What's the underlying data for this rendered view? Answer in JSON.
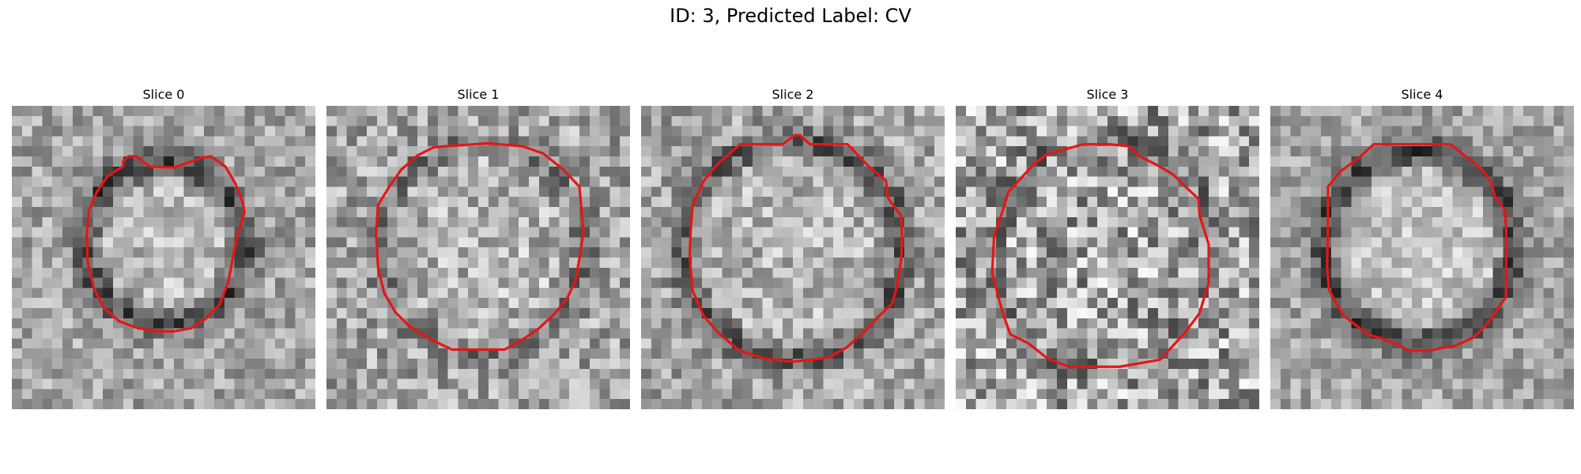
{
  "title": "ID: 3, Predicted Label: CV",
  "slices": [
    {
      "label": "Slice 0",
      "contour_color": "#e51616"
    },
    {
      "label": "Slice 1",
      "contour_color": "#e51616"
    },
    {
      "label": "Slice 2",
      "contour_color": "#e51616"
    },
    {
      "label": "Slice 3",
      "contour_color": "#e51616"
    },
    {
      "label": "Slice 4",
      "contour_color": "#e51616"
    }
  ]
}
